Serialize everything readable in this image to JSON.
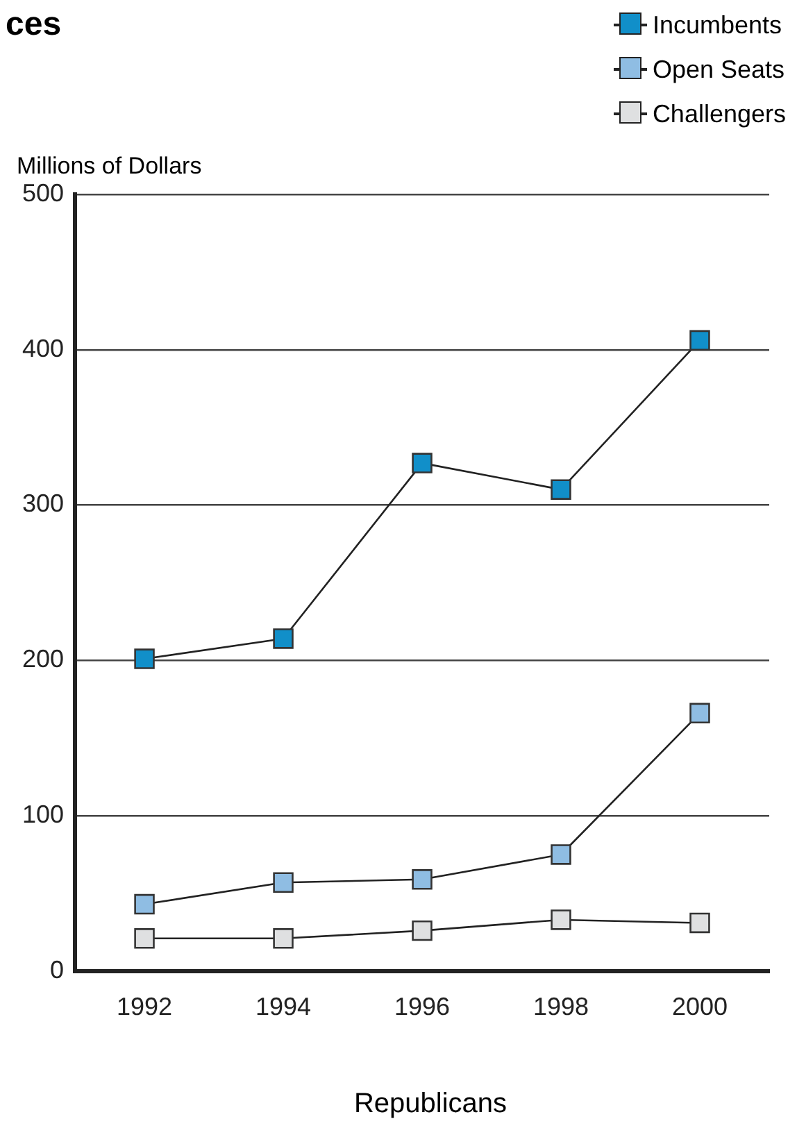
{
  "chart_data": {
    "type": "line",
    "title": "ces",
    "xlabel": "Republicans",
    "ylabel": "Millions of Dollars",
    "categories": [
      "1992",
      "1994",
      "1996",
      "1998",
      "2000"
    ],
    "series": [
      {
        "name": "Incumbents",
        "color": "#118fc9",
        "values": [
          201,
          214,
          327,
          310,
          406
        ]
      },
      {
        "name": "Open Seats",
        "color": "#8fbde3",
        "values": [
          43,
          57,
          59,
          75,
          166
        ]
      },
      {
        "name": "Challengers",
        "color": "#dfe0e1",
        "values": [
          21,
          21,
          26,
          33,
          31
        ]
      }
    ],
    "ylim": [
      0,
      500
    ],
    "yticks": [
      0,
      100,
      200,
      300,
      400,
      500
    ],
    "grid": "y",
    "legend": "top right",
    "marker": "square",
    "line_style": "solid"
  }
}
